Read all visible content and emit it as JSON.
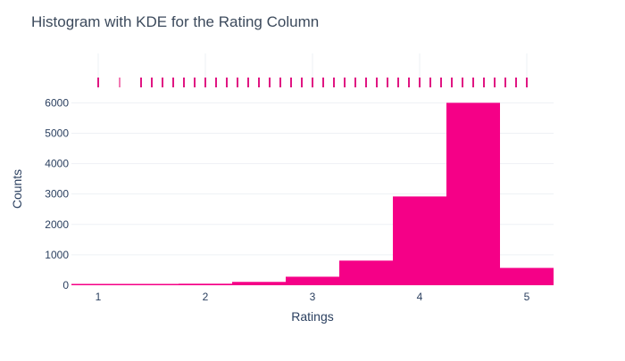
{
  "chart_data": {
    "type": "bar",
    "title": "Histogram with KDE for the Rating Column",
    "xlabel": "Ratings",
    "ylabel": "Counts",
    "xlim": [
      0.75,
      5.25
    ],
    "ylim": [
      0,
      6450
    ],
    "x_ticks": [
      1,
      2,
      3,
      4,
      5
    ],
    "y_ticks": [
      0,
      1000,
      2000,
      3000,
      4000,
      5000,
      6000
    ],
    "bins": [
      {
        "x0": 0.75,
        "x1": 1.25,
        "count": 15
      },
      {
        "x0": 1.25,
        "x1": 1.75,
        "count": 15
      },
      {
        "x0": 1.75,
        "x1": 2.25,
        "count": 50
      },
      {
        "x0": 2.25,
        "x1": 2.75,
        "count": 110
      },
      {
        "x0": 2.75,
        "x1": 3.25,
        "count": 280
      },
      {
        "x0": 3.25,
        "x1": 3.75,
        "count": 810
      },
      {
        "x0": 3.75,
        "x1": 4.25,
        "count": 2920
      },
      {
        "x0": 4.25,
        "x1": 4.75,
        "count": 6000
      },
      {
        "x0": 4.75,
        "x1": 5.25,
        "count": 570
      }
    ],
    "rug_values": [
      1.0,
      1.2,
      1.4,
      1.5,
      1.6,
      1.7,
      1.8,
      1.9,
      2.0,
      2.1,
      2.2,
      2.3,
      2.4,
      2.5,
      2.6,
      2.7,
      2.8,
      2.9,
      3.0,
      3.1,
      3.2,
      3.3,
      3.4,
      3.5,
      3.6,
      3.7,
      3.8,
      3.9,
      4.0,
      4.1,
      4.2,
      4.3,
      4.4,
      4.5,
      4.6,
      4.7,
      4.8,
      4.9,
      5.0
    ],
    "rug_faint_values": [
      1.2
    ],
    "grid": true,
    "colors": {
      "bar": "#f50087",
      "rug": "#e01582",
      "rug_faint": "#f27bb4",
      "grid": "#eef1f5",
      "text": "#2a3f5f",
      "title": "#3c4a5c"
    }
  }
}
